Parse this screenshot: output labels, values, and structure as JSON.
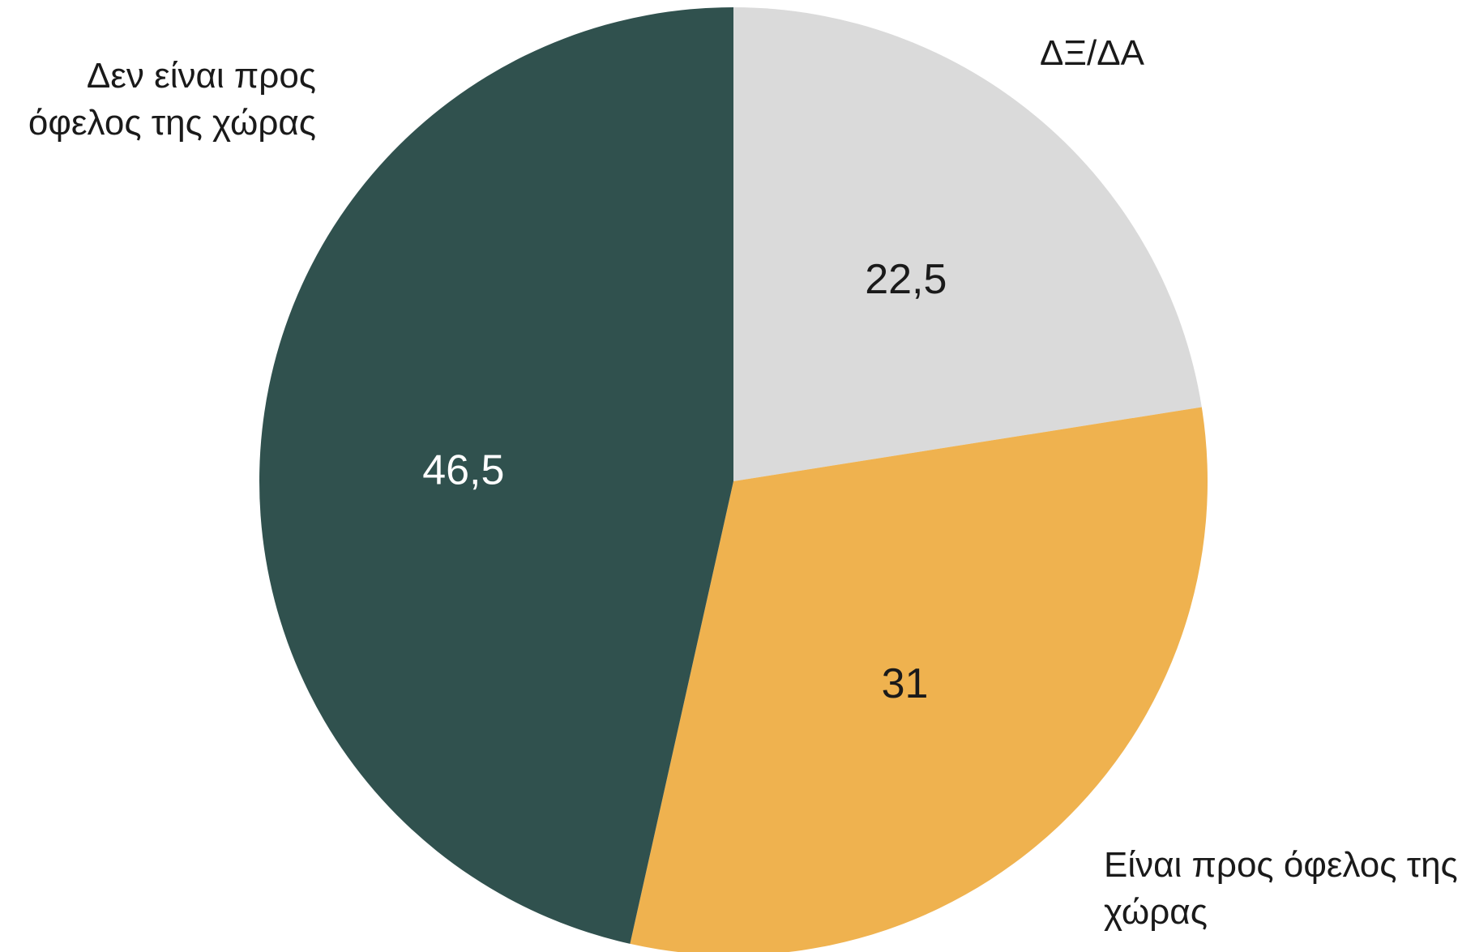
{
  "chart_data": {
    "type": "pie",
    "title": "",
    "start_angle_deg": 0,
    "direction": "clockwise",
    "slices": [
      {
        "category": "ΔΞ/ΔΑ",
        "category_lines": [
          "ΔΞ/ΔΑ"
        ],
        "value": 22.5,
        "value_label": "22,5",
        "color": "#dadada",
        "value_label_color": "#1a1a1a",
        "category_anchor": "start"
      },
      {
        "category": "Είναι προς όφελος της χώρας",
        "category_lines": [
          "Είναι προς όφελος της",
          "χώρας"
        ],
        "value": 31,
        "value_label": "31",
        "color": "#efb24f",
        "value_label_color": "#1a1a1a",
        "category_anchor": "start"
      },
      {
        "category": "Δεν είναι προς όφελος της χώρας",
        "category_lines": [
          "Δεν είναι προς",
          "όφελος της χώρας"
        ],
        "value": 46.5,
        "value_label": "46,5",
        "color": "#30514e",
        "value_label_color": "#ffffff",
        "category_anchor": "end"
      }
    ]
  }
}
